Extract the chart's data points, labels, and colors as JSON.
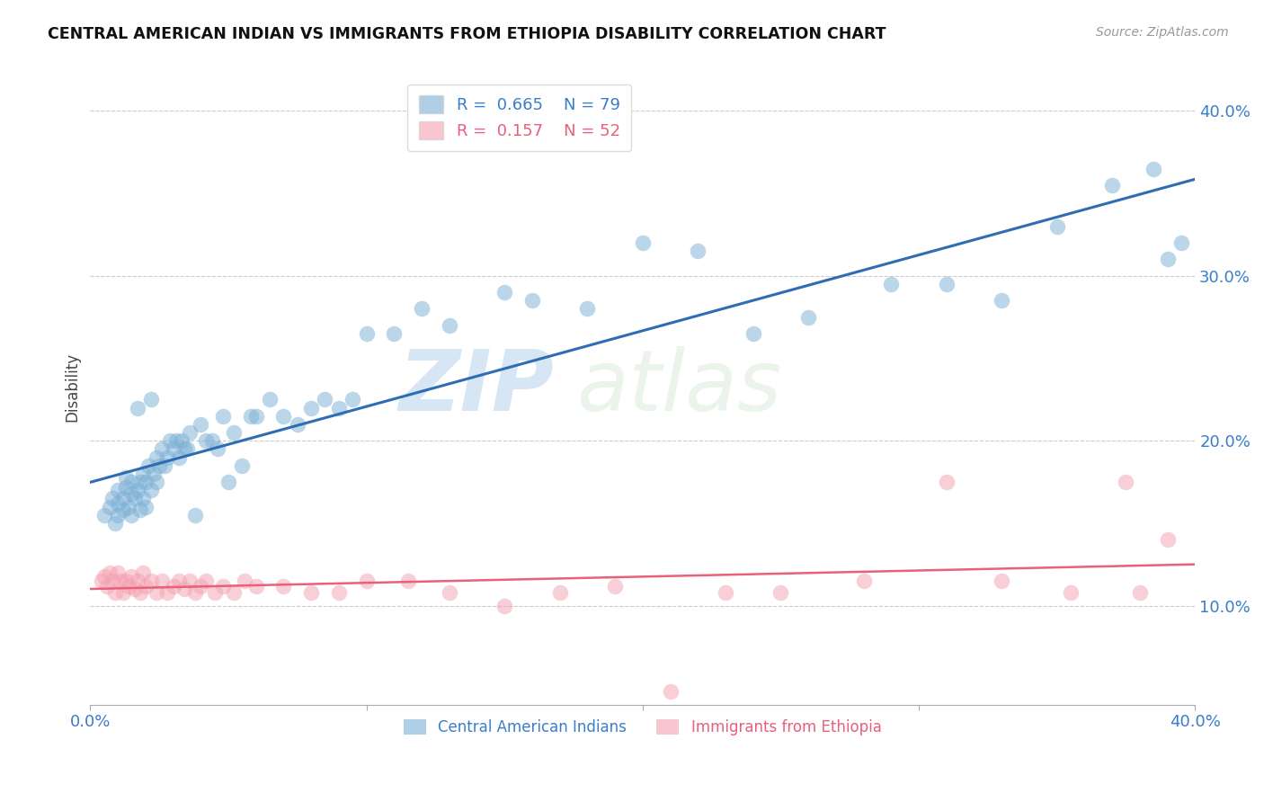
{
  "title": "CENTRAL AMERICAN INDIAN VS IMMIGRANTS FROM ETHIOPIA DISABILITY CORRELATION CHART",
  "source": "Source: ZipAtlas.com",
  "ylabel": "Disability",
  "xlim": [
    0.0,
    0.4
  ],
  "ylim": [
    0.04,
    0.425
  ],
  "yticks": [
    0.1,
    0.2,
    0.3,
    0.4
  ],
  "ytick_labels": [
    "10.0%",
    "20.0%",
    "30.0%",
    "40.0%"
  ],
  "xticks": [
    0.0,
    0.1,
    0.2,
    0.3,
    0.4
  ],
  "xtick_labels": [
    "0.0%",
    "",
    "",
    "",
    "40.0%"
  ],
  "color_blue": "#7BAFD4",
  "color_pink": "#F4A0B0",
  "color_blue_line": "#2E6DB4",
  "color_pink_line": "#E8607A",
  "color_text_blue": "#3A7DC9",
  "color_text_pink": "#E8607A",
  "watermark_text": "ZIPatlas",
  "watermark_color": "#D8EAF8",
  "background_color": "#FFFFFF",
  "grid_color": "#CCCCCC",
  "blue_x": [
    0.005,
    0.007,
    0.008,
    0.009,
    0.01,
    0.01,
    0.01,
    0.012,
    0.012,
    0.013,
    0.013,
    0.014,
    0.015,
    0.015,
    0.015,
    0.016,
    0.017,
    0.017,
    0.018,
    0.018,
    0.019,
    0.019,
    0.02,
    0.02,
    0.021,
    0.022,
    0.022,
    0.023,
    0.024,
    0.024,
    0.025,
    0.026,
    0.027,
    0.028,
    0.029,
    0.03,
    0.031,
    0.032,
    0.033,
    0.034,
    0.035,
    0.036,
    0.038,
    0.04,
    0.042,
    0.044,
    0.046,
    0.048,
    0.05,
    0.052,
    0.055,
    0.058,
    0.06,
    0.065,
    0.07,
    0.075,
    0.08,
    0.085,
    0.09,
    0.095,
    0.1,
    0.11,
    0.12,
    0.13,
    0.15,
    0.16,
    0.18,
    0.2,
    0.22,
    0.24,
    0.26,
    0.29,
    0.31,
    0.33,
    0.35,
    0.37,
    0.385,
    0.39,
    0.395
  ],
  "blue_y": [
    0.155,
    0.16,
    0.165,
    0.15,
    0.155,
    0.162,
    0.17,
    0.158,
    0.165,
    0.172,
    0.178,
    0.16,
    0.155,
    0.168,
    0.175,
    0.165,
    0.17,
    0.22,
    0.158,
    0.175,
    0.165,
    0.18,
    0.16,
    0.175,
    0.185,
    0.17,
    0.225,
    0.18,
    0.175,
    0.19,
    0.185,
    0.195,
    0.185,
    0.19,
    0.2,
    0.195,
    0.2,
    0.19,
    0.2,
    0.195,
    0.195,
    0.205,
    0.155,
    0.21,
    0.2,
    0.2,
    0.195,
    0.215,
    0.175,
    0.205,
    0.185,
    0.215,
    0.215,
    0.225,
    0.215,
    0.21,
    0.22,
    0.225,
    0.22,
    0.225,
    0.265,
    0.265,
    0.28,
    0.27,
    0.29,
    0.285,
    0.28,
    0.32,
    0.315,
    0.265,
    0.275,
    0.295,
    0.295,
    0.285,
    0.33,
    0.355,
    0.365,
    0.31,
    0.32
  ],
  "pink_x": [
    0.004,
    0.005,
    0.006,
    0.007,
    0.008,
    0.009,
    0.01,
    0.011,
    0.012,
    0.013,
    0.014,
    0.015,
    0.016,
    0.017,
    0.018,
    0.019,
    0.02,
    0.022,
    0.024,
    0.026,
    0.028,
    0.03,
    0.032,
    0.034,
    0.036,
    0.038,
    0.04,
    0.042,
    0.045,
    0.048,
    0.052,
    0.056,
    0.06,
    0.07,
    0.08,
    0.09,
    0.1,
    0.115,
    0.13,
    0.15,
    0.17,
    0.19,
    0.21,
    0.23,
    0.25,
    0.28,
    0.31,
    0.33,
    0.355,
    0.375,
    0.38,
    0.39
  ],
  "pink_y": [
    0.115,
    0.118,
    0.112,
    0.12,
    0.115,
    0.108,
    0.12,
    0.115,
    0.108,
    0.115,
    0.112,
    0.118,
    0.11,
    0.115,
    0.108,
    0.12,
    0.112,
    0.115,
    0.108,
    0.115,
    0.108,
    0.112,
    0.115,
    0.11,
    0.115,
    0.108,
    0.112,
    0.115,
    0.108,
    0.112,
    0.108,
    0.115,
    0.112,
    0.112,
    0.108,
    0.108,
    0.115,
    0.115,
    0.108,
    0.1,
    0.108,
    0.112,
    0.048,
    0.108,
    0.108,
    0.115,
    0.175,
    0.115,
    0.108,
    0.175,
    0.108,
    0.14
  ]
}
